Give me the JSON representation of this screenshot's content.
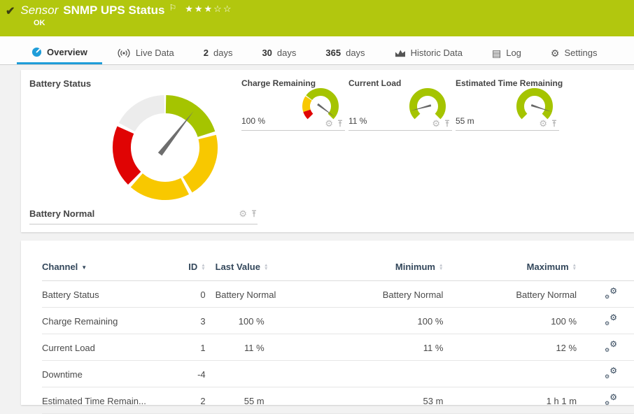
{
  "header": {
    "check_icon": "✔",
    "kind_label": "Sensor",
    "title": "SNMP UPS Status",
    "flag_icon": "⚐",
    "priority_stars": "★★★☆☆",
    "status_text": "OK",
    "bg_color": "#b2c70e"
  },
  "tabs": {
    "overview": {
      "label": "Overview"
    },
    "live": {
      "label": "Live Data"
    },
    "d2": {
      "num": "2",
      "unit": "days"
    },
    "d30": {
      "num": "30",
      "unit": "days"
    },
    "d365": {
      "num": "365",
      "unit": "days"
    },
    "historic": {
      "label": "Historic Data"
    },
    "log": {
      "label": "Log"
    },
    "settings": {
      "label": "Settings"
    }
  },
  "colors": {
    "accent_blue": "#1f9dd9",
    "status_green": "#b2c70e",
    "gauge_green": "#a5c400",
    "gauge_yellow": "#f8c800",
    "gauge_red": "#e00404",
    "gauge_gray": "#ececec",
    "table_header_text": "#33475b"
  },
  "panel_battery": {
    "title": "Battery Status",
    "status_label": "Battery Normal",
    "gauge": {
      "needle_angle": 38,
      "needle_color": "#6e6e6e",
      "segments": [
        {
          "color": "#a5c400",
          "start": 1,
          "end": 72
        },
        {
          "color": "#f8c800",
          "start": 76,
          "end": 149
        },
        {
          "color": "#f8c800",
          "start": 153,
          "end": 221
        },
        {
          "color": "#e00404",
          "start": 225,
          "end": 294
        },
        {
          "color": "#ececec",
          "start": 298,
          "end": 359
        }
      ]
    }
  },
  "mini_gauges": [
    {
      "title": "Charge Remaining",
      "value": "100 %",
      "needle_angle": 127,
      "needle_color": "#666666",
      "segments": [
        {
          "color": "#e00404",
          "start": -135,
          "end": -108
        },
        {
          "color": "#f8c800",
          "start": -108,
          "end": -56
        },
        {
          "color": "#a5c400",
          "start": -53,
          "end": 135
        }
      ]
    },
    {
      "title": "Current Load",
      "value": "11 %",
      "needle_angle": -105,
      "needle_color": "#666666",
      "segments": [
        {
          "color": "#a5c400",
          "start": -135,
          "end": 135
        }
      ]
    },
    {
      "title": "Estimated Time Remaining",
      "value": "55 m",
      "needle_angle": 108,
      "needle_color": "#666666",
      "segments": [
        {
          "color": "#a5c400",
          "start": -135,
          "end": 135
        }
      ]
    }
  ],
  "table": {
    "columns": {
      "channel": "Channel",
      "id": "ID",
      "last": "Last Value",
      "min": "Minimum",
      "max": "Maximum"
    },
    "rows": [
      {
        "channel": "Battery Status",
        "id": "0",
        "last": "Battery Normal",
        "min": "Battery Normal",
        "max": "Battery Normal",
        "numeric": false
      },
      {
        "channel": "Charge Remaining",
        "id": "3",
        "last": "100 %",
        "min": "100 %",
        "max": "100 %",
        "numeric": true
      },
      {
        "channel": "Current Load",
        "id": "1",
        "last": "11 %",
        "min": "11 %",
        "max": "12 %",
        "numeric": true
      },
      {
        "channel": "Downtime",
        "id": "-4",
        "last": "",
        "min": "",
        "max": "",
        "numeric": true
      },
      {
        "channel": "Estimated Time Remain...",
        "id": "2",
        "last": "55 m",
        "min": "53 m",
        "max": "1 h 1 m",
        "numeric": true
      }
    ]
  }
}
